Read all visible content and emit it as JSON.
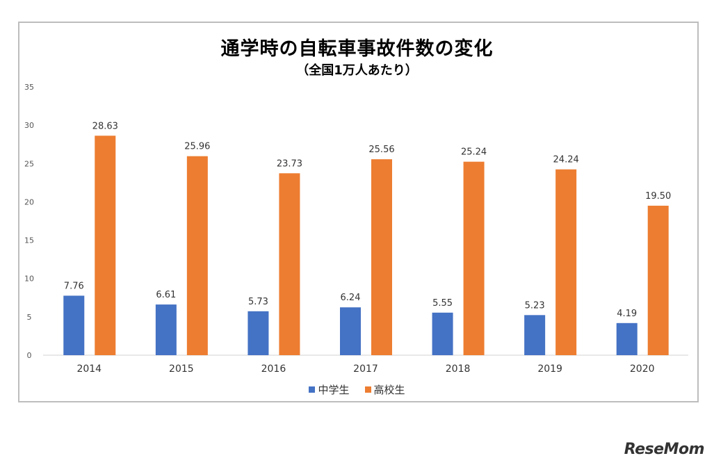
{
  "chart_data": {
    "type": "bar",
    "title": "通学時の自転車事故件数の変化",
    "subtitle": "（全国1万人あたり）",
    "categories": [
      "2014",
      "2015",
      "2016",
      "2017",
      "2018",
      "2019",
      "2020"
    ],
    "series": [
      {
        "name": "中学生",
        "values": [
          7.76,
          6.61,
          5.73,
          6.24,
          5.55,
          5.23,
          4.19
        ],
        "color": "#4472c4"
      },
      {
        "name": "高校生",
        "values": [
          28.63,
          25.96,
          23.73,
          25.56,
          25.24,
          24.24,
          19.5
        ],
        "color": "#ed7d31"
      }
    ],
    "ylim": [
      0,
      35
    ],
    "yticks": [
      0,
      5,
      10,
      15,
      20,
      25,
      30,
      35
    ],
    "grid": false,
    "legend": "bottom"
  },
  "brand": {
    "logo": "ReseMom"
  }
}
